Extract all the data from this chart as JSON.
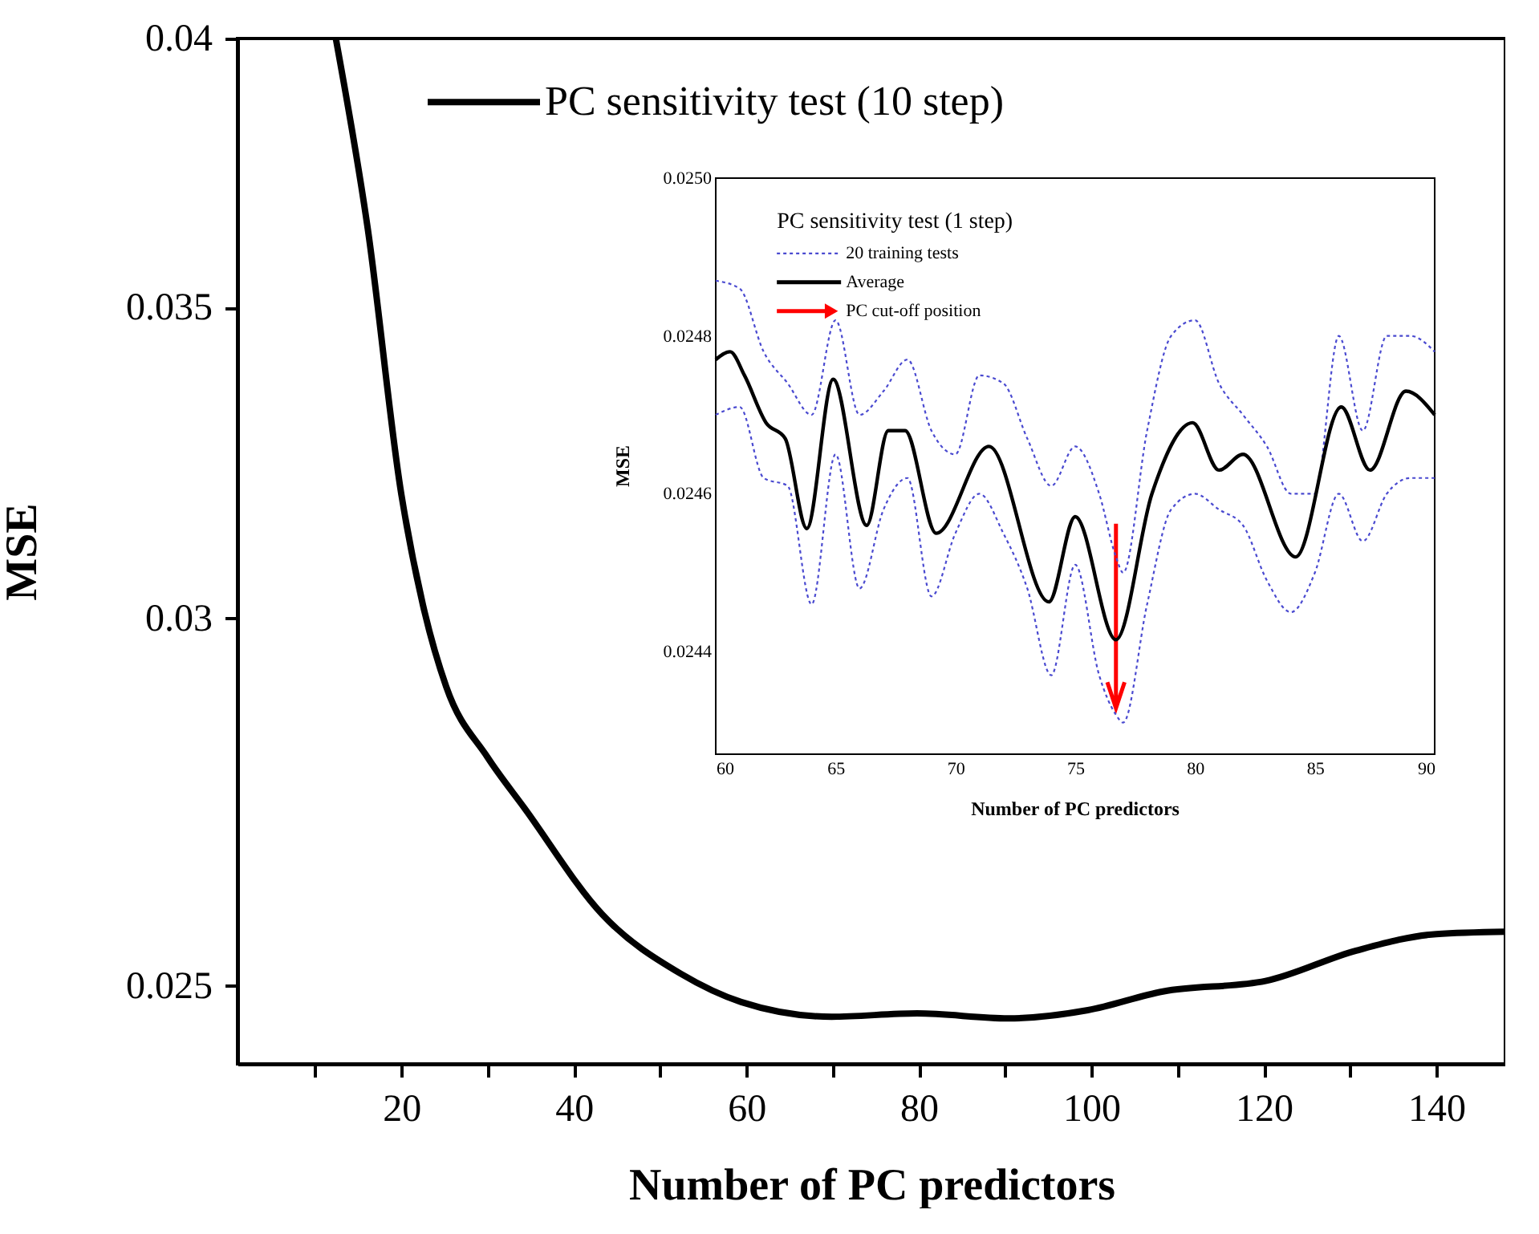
{
  "chart_data": [
    {
      "type": "line",
      "xlabel": "Number of PC predictors",
      "ylabel": "MSE",
      "log": "y",
      "legend": "top",
      "xlim": [
        1,
        148
      ],
      "ylim": [
        0.02405,
        0.04
      ],
      "xticks": [
        {
          "value": 10,
          "label": null
        },
        20,
        {
          "value": 30,
          "label": null
        },
        40,
        {
          "value": 50,
          "label": null
        },
        60,
        {
          "value": 70,
          "label": null
        },
        80,
        {
          "value": 90,
          "label": null
        },
        100,
        {
          "value": 110,
          "label": null
        },
        120,
        {
          "value": 130,
          "label": null
        },
        140
      ],
      "yticks": [
        0.025,
        0.03,
        0.035,
        0.04
      ],
      "series": [
        {
          "name": "PC sensitivity test (10 step)",
          "color": "#000000",
          "x": [
            12.4,
            16.1,
            20,
            22.5,
            25.2,
            30,
            34.3,
            43.3,
            52.4,
            59.4,
            69.9,
            79.8,
            90.4,
            99.6,
            108.3,
            120.2,
            130.7,
            140,
            148
          ],
          "values": [
            0.04,
            0.0364,
            0.0319,
            0.0302,
            0.029,
            0.028,
            0.0273,
            0.0259,
            0.02515,
            0.0248,
            0.02462,
            0.02466,
            0.0246,
            0.0247,
            0.02493,
            0.02506,
            0.02544,
            0.02565,
            0.02568
          ]
        }
      ]
    },
    {
      "type": "line",
      "xlabel": "Number of PC predictors",
      "ylabel": "MSE",
      "legend_title": "PC sensitivity test (1 step)",
      "legend": "top left",
      "xlim": [
        60,
        90
      ],
      "ylim": [
        0.02427,
        0.025
      ],
      "xticks": [
        60,
        65,
        70,
        75,
        80,
        85,
        90
      ],
      "yticks": [
        0.0244,
        0.0246,
        0.0248,
        {
          "value": 0.025,
          "label": "0.0250"
        }
      ],
      "series": [
        {
          "name": "20 training tests",
          "color": "#4a4ad0",
          "line_style": "dotted",
          "x": [
            60,
            61,
            62,
            63,
            64,
            65,
            66,
            67,
            68,
            69,
            70,
            71,
            72,
            73,
            74,
            75,
            76,
            76.7,
            77,
            78,
            79,
            80,
            81,
            82,
            83,
            84,
            85,
            86,
            87,
            88,
            89,
            90
          ],
          "values": [
            0.0247,
            0.02471,
            0.02462,
            0.02461,
            0.02446,
            0.02465,
            0.02448,
            0.02458,
            0.02462,
            0.02447,
            0.02455,
            0.0246,
            0.02455,
            0.02448,
            0.02437,
            0.02451,
            0.02437,
            0.02432,
            0.02431,
            0.02446,
            0.02458,
            0.0246,
            0.02458,
            0.02456,
            0.02449,
            0.02445,
            0.0245,
            0.0246,
            0.02454,
            0.0246,
            0.02462,
            0.02462
          ]
        },
        {
          "color": "#4a4ad0",
          "line_style": "dotted",
          "x": [
            60,
            61,
            62,
            63,
            64,
            65,
            66,
            67,
            68,
            69,
            70,
            71,
            72,
            73,
            74,
            75,
            76,
            76.7,
            77,
            78,
            79,
            80,
            81,
            82,
            83,
            84,
            85,
            86,
            87,
            88,
            89,
            90
          ],
          "values": [
            0.02487,
            0.02486,
            0.02478,
            0.02474,
            0.0247,
            0.02482,
            0.0247,
            0.02473,
            0.02477,
            0.02468,
            0.02465,
            0.02475,
            0.02474,
            0.02467,
            0.02461,
            0.02466,
            0.0246,
            0.02452,
            0.0245,
            0.02468,
            0.0248,
            0.02482,
            0.02474,
            0.0247,
            0.02466,
            0.0246,
            0.0246,
            0.0248,
            0.02468,
            0.0248,
            0.0248,
            0.02478
          ]
        },
        {
          "name": "Average",
          "color": "#000000",
          "x": [
            60,
            60.6,
            61.2,
            62.1,
            62.9,
            63.8,
            64.9,
            66.3,
            67.2,
            67.9,
            69.2,
            71.4,
            73.9,
            75,
            76.7,
            78.2,
            79.9,
            81,
            82,
            84.2,
            86.1,
            87.3,
            88.8,
            90
          ],
          "values": [
            0.02477,
            0.02478,
            0.02475,
            0.02469,
            0.02467,
            0.024556,
            0.024745,
            0.02456,
            0.02468,
            0.02468,
            0.02455,
            0.02466,
            0.024463,
            0.024571,
            0.024415,
            0.0246,
            0.02469,
            0.02463,
            0.02465,
            0.02452,
            0.02471,
            0.02463,
            0.02473,
            0.0247
          ]
        }
      ],
      "ref_lines": [
        {
          "axis": "x",
          "value": 76.7,
          "label": "PC cut-off position",
          "color": "#ff0000"
        }
      ]
    }
  ]
}
